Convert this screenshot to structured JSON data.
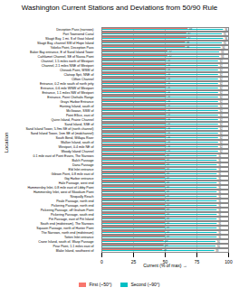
{
  "chart_data": {
    "type": "bar",
    "orientation": "horizontal",
    "title": "Washington Current Stations and Deviations from 50/90 Rule",
    "x_label": "Current (% of max)",
    "y_label": "Location",
    "categories": [
      "Deception Pass (narrows)",
      "Port Townsend Canal",
      "Skagit Bay, 1 mi. S of Goat Island",
      "Skagit Bay, channel SW of Hope Island",
      "Yokeko Point, Deception Pass",
      "Baker Bay entrance, E of Sand Island Tower",
      "Cathlamet Channel, SE of Nassa Point",
      "Channel, 1.5 miles north of Westport",
      "Channel, 2.1 miles NNE of Westport",
      "Chinook Point, WSW of",
      "Clatsop Spit, NNE of",
      "Clifton Channel",
      "Entrance, 0.2 mile south of north jetty",
      "Entrance, 0.6 mile WNW of Westport",
      "Entrance, 1.1 miles NW of Westport",
      "Entrance, Point Chehalis Range",
      "Grays Harbor Entrance",
      "Hunting Island, south of",
      "McGowan, SSW of",
      "Point Ellice, east of",
      "Quinn Island, Prairie Channel",
      "Sand Island, SSE of",
      "Sand Island Tower, 5.9mi SE of (north channel)",
      "Sand Island Tower, 1nm SE of (midchannel)",
      "South Bend, Willapa River",
      "Walker Island, south of",
      "Westport, 0.4 mile NE of",
      "Woody Island Channel",
      "0.1 mile east of Point Evans, The Narrows",
      "Balch Passage",
      "Dana Passage",
      "Eld Inlet entrance",
      "Gibson Point, 0.8 mile east of",
      "Gig Harbor entrance",
      "Hale Passage, west end",
      "Hammersley Inlet, 0.8 mile east of Libby Point",
      "Hammersley Inlet, west of Skookum Point",
      "Nisqually Reach",
      "Peale Passage, north end",
      "Pickering Passage, north end",
      "Pickering Passage, off Graham Point",
      "Pickering Passage, south end",
      "Pitt Passage, east of Pitt Island",
      "South end (midstream), The Narrows",
      "Squaxin Passage, north of Hunter Point",
      "The Narrows, north end (midstream)",
      "Totten Inlet entrance",
      "Crane Island, south of, Wasp Passage",
      "Pear Point, 1.1 miles east of",
      "Blake Island, southwest of"
    ],
    "series": [
      {
        "name": "First (~50°)",
        "color": "#f8766d",
        "values": [
          68,
          67,
          67,
          66,
          66,
          52,
          52,
          51,
          51,
          51,
          51,
          51,
          51,
          51,
          51,
          51,
          51,
          51,
          51,
          51,
          51,
          51,
          51,
          51,
          51,
          51,
          51,
          51,
          50,
          50,
          50,
          50,
          50,
          50,
          50,
          50,
          50,
          50,
          50,
          50,
          50,
          50,
          50,
          50,
          50,
          50,
          50,
          49,
          49,
          48
        ]
      },
      {
        "name": "Second (~90°)",
        "color": "#00bfc4",
        "values": [
          96,
          95,
          96,
          95,
          94,
          93,
          93,
          92,
          92,
          92,
          92,
          92,
          92,
          92,
          92,
          92,
          92,
          92,
          92,
          92,
          92,
          92,
          92,
          92,
          92,
          92,
          92,
          92,
          91,
          91,
          91,
          91,
          91,
          91,
          91,
          91,
          91,
          91,
          91,
          91,
          91,
          91,
          91,
          91,
          91,
          91,
          91,
          90,
          90,
          89
        ]
      }
    ],
    "xlim": [
      0,
      100
    ],
    "xticks": [
      0,
      25,
      50,
      75,
      100
    ],
    "grid": true,
    "legend": "bottom",
    "data_labels": true
  }
}
